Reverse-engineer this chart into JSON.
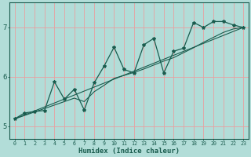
{
  "xlabel": "Humidex (Indice chaleur)",
  "bg_color": "#b2ddd8",
  "line_color": "#1a5c4e",
  "grid_color_v": "#e8a0a0",
  "grid_color_h": "#e8a0a0",
  "xlim": [
    -0.5,
    23.5
  ],
  "ylim": [
    4.75,
    7.5
  ],
  "yticks": [
    5,
    6,
    7
  ],
  "xticks": [
    0,
    1,
    2,
    3,
    4,
    5,
    6,
    7,
    8,
    9,
    10,
    11,
    12,
    13,
    14,
    15,
    16,
    17,
    18,
    19,
    20,
    21,
    22,
    23
  ],
  "line1_x": [
    0,
    1,
    2,
    3,
    4,
    5,
    6,
    7,
    8,
    9,
    10,
    11,
    12,
    13,
    14,
    15,
    16,
    17,
    18,
    19,
    20,
    21,
    22,
    23
  ],
  "line1_y": [
    5.15,
    5.27,
    5.3,
    5.32,
    5.9,
    5.55,
    5.75,
    5.33,
    5.88,
    6.22,
    6.6,
    6.15,
    6.08,
    6.65,
    6.78,
    6.08,
    6.52,
    6.58,
    7.1,
    7.0,
    7.12,
    7.12,
    7.05,
    7.0
  ],
  "line2_x": [
    0,
    23
  ],
  "line2_y": [
    5.15,
    7.0
  ],
  "line3_x": [
    0,
    1,
    2,
    3,
    4,
    5,
    6,
    7,
    8,
    9,
    10,
    11,
    12,
    13,
    14,
    15,
    16,
    17,
    18,
    19,
    20,
    21,
    22,
    23
  ],
  "line3_y": [
    5.15,
    5.22,
    5.29,
    5.36,
    5.43,
    5.5,
    5.57,
    5.5,
    5.7,
    5.83,
    5.97,
    6.03,
    6.09,
    6.16,
    6.24,
    6.32,
    6.39,
    6.49,
    6.59,
    6.7,
    6.8,
    6.9,
    6.97,
    7.0
  ]
}
